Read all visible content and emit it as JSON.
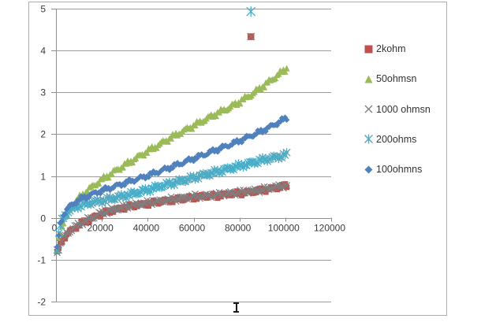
{
  "page": {
    "background": "#ffffff"
  },
  "chart_data": {
    "type": "scatter",
    "title": "",
    "xlabel": "",
    "ylabel": "",
    "x_axis": {
      "min": 0,
      "max": 120000,
      "tick_interval": 20000,
      "ticks": [
        0,
        20000,
        40000,
        60000,
        80000,
        100000,
        120000
      ],
      "tick_labels": [
        "0",
        "20000",
        "40000",
        "60000",
        "80000",
        "100000",
        "120000"
      ]
    },
    "y_axis": {
      "min": -2,
      "max": 5,
      "tick_interval": 1,
      "ticks": [
        5,
        4,
        3,
        2,
        1,
        0,
        -1,
        -2
      ],
      "tick_labels": [
        "5",
        "4",
        "3",
        "2",
        "1",
        "0",
        "-1",
        "-2"
      ]
    },
    "gridlines": {
      "horizontal": true,
      "vertical": false
    },
    "legend_position": "right",
    "note": "dense scatter bands; anchor_points are sampled readings, markers occur roughly every 700 x-units from 500 to 101000",
    "marker_x_start": 500,
    "marker_x_end": 101000,
    "marker_x_step": 700,
    "series": [
      {
        "name": "2kohm",
        "marker": "square",
        "color": "#C0504D",
        "anchor_points": [
          [
            500,
            -0.85
          ],
          [
            1000,
            -0.76
          ],
          [
            2000,
            -0.62
          ],
          [
            3000,
            -0.52
          ],
          [
            4000,
            -0.44
          ],
          [
            5000,
            -0.38
          ],
          [
            7500,
            -0.27
          ],
          [
            10000,
            -0.17
          ],
          [
            15000,
            -0.03
          ],
          [
            20000,
            0.1
          ],
          [
            25000,
            0.18
          ],
          [
            30000,
            0.25
          ],
          [
            35000,
            0.3
          ],
          [
            40000,
            0.34
          ],
          [
            45000,
            0.38
          ],
          [
            50000,
            0.42
          ],
          [
            55000,
            0.45
          ],
          [
            60000,
            0.49
          ],
          [
            65000,
            0.51
          ],
          [
            70000,
            0.53
          ],
          [
            75000,
            0.56
          ],
          [
            80000,
            0.59
          ],
          [
            85000,
            0.62
          ],
          [
            90000,
            0.66
          ],
          [
            95000,
            0.71
          ],
          [
            101000,
            0.77
          ]
        ],
        "outlier_points": [
          [
            85000,
            4.33
          ]
        ]
      },
      {
        "name": "50ohmsn",
        "marker": "triangle",
        "color": "#9BBB59",
        "anchor_points": [
          [
            500,
            -0.78
          ],
          [
            1000,
            -0.55
          ],
          [
            2000,
            -0.3
          ],
          [
            3000,
            -0.12
          ],
          [
            4000,
            0.0
          ],
          [
            5000,
            0.12
          ],
          [
            7500,
            0.33
          ],
          [
            10000,
            0.48
          ],
          [
            15000,
            0.72
          ],
          [
            20000,
            0.92
          ],
          [
            25000,
            1.1
          ],
          [
            30000,
            1.27
          ],
          [
            35000,
            1.44
          ],
          [
            40000,
            1.6
          ],
          [
            45000,
            1.76
          ],
          [
            50000,
            1.92
          ],
          [
            55000,
            2.07
          ],
          [
            60000,
            2.21
          ],
          [
            65000,
            2.36
          ],
          [
            70000,
            2.5
          ],
          [
            75000,
            2.63
          ],
          [
            80000,
            2.78
          ],
          [
            85000,
            2.95
          ],
          [
            90000,
            3.14
          ],
          [
            95000,
            3.35
          ],
          [
            101000,
            3.6
          ]
        ],
        "outlier_points": []
      },
      {
        "name": "1000 ohmsn",
        "marker": "x",
        "color": "#7F7F7F",
        "anchor_points": [
          [
            500,
            -0.83
          ],
          [
            1000,
            -0.74
          ],
          [
            2000,
            -0.6
          ],
          [
            3000,
            -0.5
          ],
          [
            4000,
            -0.42
          ],
          [
            5000,
            -0.36
          ],
          [
            7500,
            -0.25
          ],
          [
            10000,
            -0.15
          ],
          [
            15000,
            -0.01
          ],
          [
            20000,
            0.12
          ],
          [
            25000,
            0.2
          ],
          [
            30000,
            0.27
          ],
          [
            35000,
            0.32
          ],
          [
            40000,
            0.36
          ],
          [
            45000,
            0.4
          ],
          [
            50000,
            0.44
          ],
          [
            55000,
            0.47
          ],
          [
            60000,
            0.51
          ],
          [
            65000,
            0.53
          ],
          [
            70000,
            0.55
          ],
          [
            75000,
            0.58
          ],
          [
            80000,
            0.61
          ],
          [
            85000,
            0.64
          ],
          [
            90000,
            0.68
          ],
          [
            95000,
            0.73
          ],
          [
            101000,
            0.79
          ]
        ],
        "outlier_points": [
          [
            85000,
            4.33
          ]
        ]
      },
      {
        "name": "200ohms",
        "marker": "asterisk",
        "color": "#4BACC6",
        "anchor_points": [
          [
            500,
            -0.72
          ],
          [
            1000,
            -0.46
          ],
          [
            2000,
            -0.16
          ],
          [
            3000,
            -0.02
          ],
          [
            4000,
            0.07
          ],
          [
            5000,
            0.13
          ],
          [
            7500,
            0.23
          ],
          [
            10000,
            0.29
          ],
          [
            15000,
            0.36
          ],
          [
            20000,
            0.41
          ],
          [
            25000,
            0.47
          ],
          [
            30000,
            0.53
          ],
          [
            35000,
            0.6
          ],
          [
            40000,
            0.67
          ],
          [
            45000,
            0.75
          ],
          [
            50000,
            0.82
          ],
          [
            55000,
            0.89
          ],
          [
            60000,
            0.96
          ],
          [
            65000,
            1.03
          ],
          [
            70000,
            1.1
          ],
          [
            75000,
            1.17
          ],
          [
            80000,
            1.24
          ],
          [
            85000,
            1.31
          ],
          [
            90000,
            1.38
          ],
          [
            95000,
            1.44
          ],
          [
            101000,
            1.51
          ]
        ],
        "outlier_points": [
          [
            85000,
            4.93
          ]
        ]
      },
      {
        "name": "100ohmns",
        "marker": "diamond",
        "color": "#4F81BD",
        "anchor_points": [
          [
            500,
            -0.75
          ],
          [
            1000,
            -0.5
          ],
          [
            2000,
            -0.12
          ],
          [
            3000,
            0.04
          ],
          [
            4000,
            0.14
          ],
          [
            5000,
            0.22
          ],
          [
            7500,
            0.34
          ],
          [
            10000,
            0.43
          ],
          [
            15000,
            0.55
          ],
          [
            20000,
            0.65
          ],
          [
            25000,
            0.74
          ],
          [
            30000,
            0.83
          ],
          [
            35000,
            0.92
          ],
          [
            40000,
            1.01
          ],
          [
            45000,
            1.11
          ],
          [
            50000,
            1.21
          ],
          [
            55000,
            1.31
          ],
          [
            60000,
            1.42
          ],
          [
            65000,
            1.52
          ],
          [
            70000,
            1.63
          ],
          [
            75000,
            1.73
          ],
          [
            80000,
            1.84
          ],
          [
            85000,
            1.96
          ],
          [
            90000,
            2.08
          ],
          [
            95000,
            2.22
          ],
          [
            101000,
            2.4
          ]
        ],
        "outlier_points": []
      }
    ],
    "colors": {
      "gridline": "#9c9c9c",
      "axis": "#8f8f8f",
      "tick": "#8f8f8f",
      "chart_border": "#adadad",
      "label_text": "#3a3a3a"
    }
  }
}
